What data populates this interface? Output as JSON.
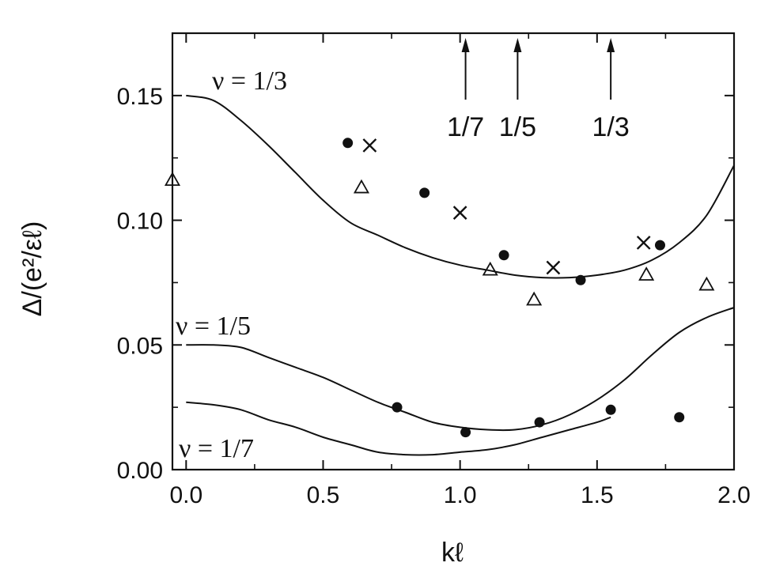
{
  "chart_data": {
    "type": "scatter",
    "title": "",
    "xlabel": "kℓ",
    "ylabel": "Δ/(e²/εℓ)",
    "xlim": [
      -0.05,
      2.0
    ],
    "ylim": [
      0.0,
      0.175
    ],
    "x_ticks": [
      "0.0",
      "0.5",
      "1.0",
      "1.5",
      "2.0"
    ],
    "y_ticks": [
      "0.00",
      "0.05",
      "0.10",
      "0.15"
    ],
    "grid": false,
    "legend": "none",
    "curves": [
      {
        "label": "ν = 1/3",
        "points": [
          [
            0.0,
            0.15
          ],
          [
            0.1,
            0.148
          ],
          [
            0.2,
            0.14
          ],
          [
            0.3,
            0.13
          ],
          [
            0.4,
            0.119
          ],
          [
            0.5,
            0.108
          ],
          [
            0.6,
            0.099
          ],
          [
            0.7,
            0.094
          ],
          [
            0.8,
            0.089
          ],
          [
            0.9,
            0.085
          ],
          [
            1.0,
            0.082
          ],
          [
            1.1,
            0.08
          ],
          [
            1.2,
            0.078
          ],
          [
            1.3,
            0.077
          ],
          [
            1.4,
            0.077
          ],
          [
            1.5,
            0.078
          ],
          [
            1.6,
            0.08
          ],
          [
            1.7,
            0.084
          ],
          [
            1.8,
            0.091
          ],
          [
            1.9,
            0.102
          ],
          [
            2.0,
            0.122
          ]
        ]
      },
      {
        "label": "ν = 1/5",
        "points": [
          [
            0.0,
            0.05
          ],
          [
            0.1,
            0.05
          ],
          [
            0.2,
            0.049
          ],
          [
            0.3,
            0.045
          ],
          [
            0.4,
            0.041
          ],
          [
            0.5,
            0.037
          ],
          [
            0.6,
            0.032
          ],
          [
            0.7,
            0.027
          ],
          [
            0.8,
            0.023
          ],
          [
            0.9,
            0.019
          ],
          [
            1.0,
            0.017
          ],
          [
            1.1,
            0.016
          ],
          [
            1.2,
            0.016
          ],
          [
            1.3,
            0.018
          ],
          [
            1.4,
            0.022
          ],
          [
            1.5,
            0.028
          ],
          [
            1.6,
            0.036
          ],
          [
            1.7,
            0.046
          ],
          [
            1.8,
            0.055
          ],
          [
            1.9,
            0.061
          ],
          [
            2.0,
            0.065
          ]
        ]
      },
      {
        "label": "ν = 1/7",
        "points": [
          [
            0.0,
            0.027
          ],
          [
            0.1,
            0.026
          ],
          [
            0.2,
            0.024
          ],
          [
            0.3,
            0.02
          ],
          [
            0.4,
            0.017
          ],
          [
            0.5,
            0.013
          ],
          [
            0.6,
            0.01
          ],
          [
            0.7,
            0.007
          ],
          [
            0.8,
            0.006
          ],
          [
            0.9,
            0.006
          ],
          [
            1.0,
            0.007
          ],
          [
            1.1,
            0.008
          ],
          [
            1.2,
            0.01
          ],
          [
            1.3,
            0.013
          ],
          [
            1.4,
            0.016
          ],
          [
            1.5,
            0.019
          ],
          [
            1.55,
            0.021
          ]
        ]
      }
    ],
    "series": [
      {
        "marker": "filled-circle",
        "points": [
          [
            0.59,
            0.131
          ],
          [
            0.87,
            0.111
          ],
          [
            1.16,
            0.086
          ],
          [
            1.44,
            0.076
          ],
          [
            1.73,
            0.09
          ],
          [
            0.77,
            0.025
          ],
          [
            1.02,
            0.015
          ],
          [
            1.29,
            0.019
          ],
          [
            1.55,
            0.024
          ],
          [
            1.8,
            0.021
          ]
        ]
      },
      {
        "marker": "cross",
        "points": [
          [
            0.67,
            0.13
          ],
          [
            1.0,
            0.103
          ],
          [
            1.34,
            0.081
          ],
          [
            1.67,
            0.091
          ]
        ]
      },
      {
        "marker": "open-triangle",
        "points": [
          [
            -0.05,
            0.116
          ],
          [
            0.64,
            0.113
          ],
          [
            1.11,
            0.08
          ],
          [
            1.27,
            0.068
          ],
          [
            1.68,
            0.078
          ],
          [
            1.9,
            0.074
          ]
        ]
      }
    ],
    "arrows": [
      {
        "x": 1.02,
        "label": "1/7"
      },
      {
        "x": 1.21,
        "label": "1/5"
      },
      {
        "x": 1.55,
        "label": "1/3"
      }
    ]
  }
}
